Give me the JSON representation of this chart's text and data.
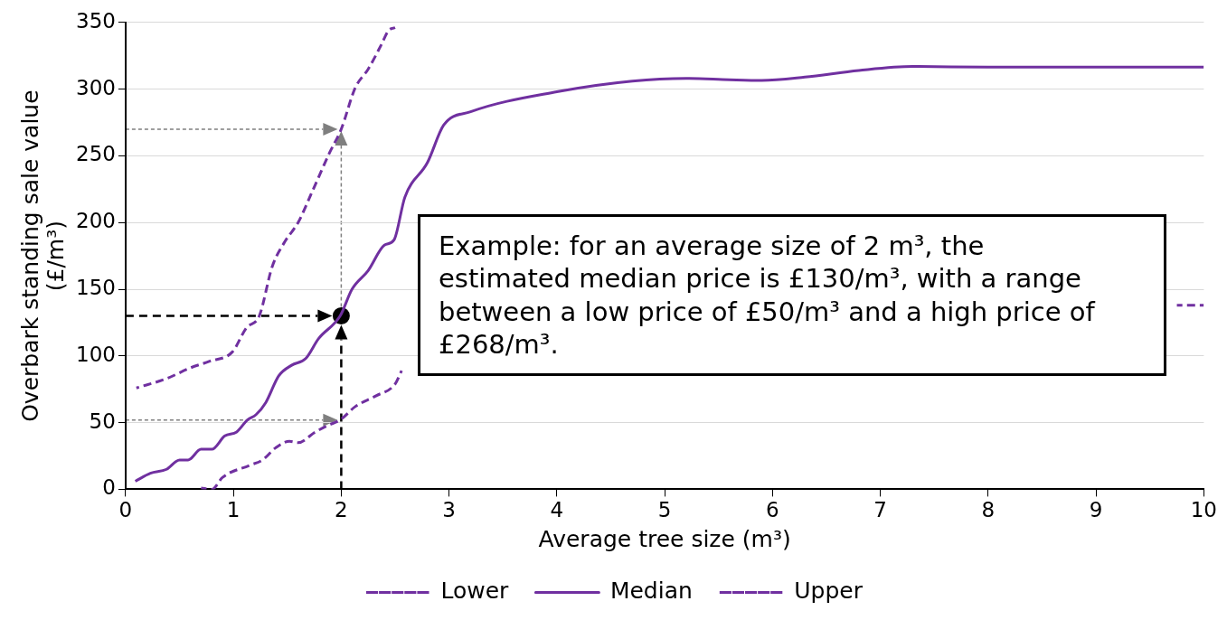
{
  "chart_data": {
    "type": "line",
    "xlabel": "Average tree size (m³)",
    "ylabel": "Overbark standing sale value\n(£/m³)",
    "xlim": [
      0,
      10
    ],
    "ylim": [
      0,
      350
    ],
    "xticks": [
      0,
      1,
      2,
      3,
      4,
      5,
      6,
      7,
      8,
      9,
      10
    ],
    "yticks": [
      0,
      50,
      100,
      150,
      200,
      250,
      300,
      350
    ],
    "grid": "y",
    "legend": "bottom",
    "marker": "none",
    "annotations": [
      "Example: for an average size of 2 m³, the estimated median price is £130/m³, with a range between a low price of £50/m³ and a high price of £268/m³."
    ],
    "series": [
      {
        "name": "Lower",
        "color": "#7030a0",
        "line_style": "dashed",
        "x": [
          0.7,
          0.8,
          0.9,
          1.15,
          1.27,
          1.39,
          1.52,
          1.6,
          1.76,
          1.88,
          1.99,
          2.13,
          2.32,
          2.5,
          2.56,
          6,
          9.75,
          10
        ],
        "values": [
          1,
          0,
          9,
          18,
          22,
          31,
          36,
          35,
          43,
          48,
          52,
          62,
          70,
          79,
          89,
          null,
          138,
          138
        ]
      },
      {
        "name": "Median",
        "color": "#7030a0",
        "line_style": "solid",
        "x": [
          0.09,
          0.23,
          0.38,
          0.5,
          0.58,
          0.7,
          0.8,
          0.92,
          1.03,
          1.13,
          1.21,
          1.3,
          1.42,
          1.54,
          1.67,
          1.79,
          1.99,
          2.1,
          2.25,
          2.4,
          2.49,
          2.59,
          2.8,
          2.95,
          3.2,
          4,
          4.7,
          5.2,
          5.6,
          5.9,
          6.3,
          6.8,
          7.3,
          8,
          10
        ],
        "values": [
          6,
          12,
          15,
          22,
          22,
          30,
          30,
          40,
          43,
          52,
          56,
          65,
          85,
          93,
          98,
          113,
          130,
          150,
          164,
          183,
          187,
          219,
          245,
          273,
          283,
          298,
          306,
          308,
          307,
          306.5,
          309,
          314,
          317,
          316.5,
          316.5
        ]
      },
      {
        "name": "Upper",
        "color": "#7030a0",
        "line_style": "dashed",
        "x": [
          0.1,
          0.38,
          0.6,
          0.78,
          0.99,
          1.12,
          1.24,
          1.36,
          1.48,
          1.6,
          1.73,
          1.89,
          2.0,
          2.13,
          2.25,
          2.37,
          2.44,
          2.5
        ],
        "values": [
          76,
          83,
          91,
          96,
          103,
          121,
          130,
          167,
          186,
          200,
          223,
          252,
          270,
          301,
          315,
          333,
          344,
          346
        ]
      },
      {
        "type": "scatter",
        "color": "#000000",
        "marker": "circle",
        "x": [
          2
        ],
        "values": [
          130
        ]
      }
    ]
  }
}
